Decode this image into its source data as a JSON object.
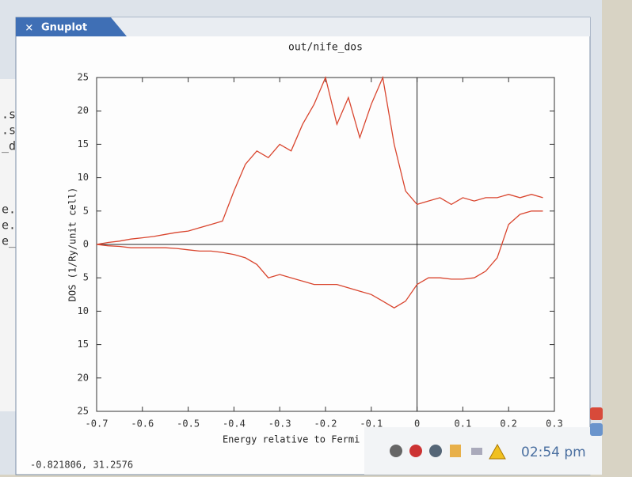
{
  "window": {
    "title": "Gnuplot"
  },
  "terminal_lines": [
    ".s",
    ".s",
    "_d",
    "e.s",
    "e.s",
    "e_d"
  ],
  "chart_data": {
    "type": "line",
    "title": "out/nife_dos",
    "x_label": "Energy relative to Fermi energy (Ry)",
    "y_label": "DOS (1/Ry/unit cell)",
    "xlim": [
      -0.7,
      0.3
    ],
    "ylim": [
      -25,
      25
    ],
    "xticks": [
      -0.7,
      -0.6,
      -0.5,
      -0.4,
      -0.3,
      -0.2,
      -0.1,
      0,
      0.1,
      0.2,
      0.3
    ],
    "yticks": [
      {
        "value": -25,
        "label": "25"
      },
      {
        "value": -20,
        "label": "20"
      },
      {
        "value": -15,
        "label": "15"
      },
      {
        "value": -10,
        "label": "10"
      },
      {
        "value": -5,
        "label": "5"
      },
      0,
      5,
      10,
      15,
      20,
      25
    ],
    "zeroaxis": true,
    "x": [
      -0.7,
      -0.675,
      -0.65,
      -0.625,
      -0.6,
      -0.575,
      -0.55,
      -0.525,
      -0.5,
      -0.475,
      -0.45,
      -0.425,
      -0.4,
      -0.375,
      -0.35,
      -0.325,
      -0.3,
      -0.275,
      -0.25,
      -0.225,
      -0.2,
      -0.175,
      -0.15,
      -0.125,
      -0.1,
      -0.075,
      -0.05,
      -0.025,
      0,
      0.025,
      0.05,
      0.075,
      0.1,
      0.125,
      0.15,
      0.175,
      0.2,
      0.225,
      0.25,
      0.275
    ],
    "series": [
      {
        "color": "#d9452e",
        "values": [
          0,
          0.3,
          0.5,
          0.8,
          1,
          1.2,
          1.5,
          1.8,
          2,
          2.5,
          3,
          3.5,
          8,
          12,
          14,
          13,
          15,
          14,
          18,
          21,
          25,
          18,
          22,
          16,
          21,
          25,
          15,
          8,
          6,
          6.5,
          7,
          6,
          7,
          6.5,
          7,
          7,
          7.5,
          7,
          7.5,
          7
        ]
      },
      {
        "color": "#d9452e",
        "values": [
          0,
          -0.2,
          -0.3,
          -0.5,
          -0.5,
          -0.5,
          -0.5,
          -0.6,
          -0.8,
          -1,
          -1,
          -1.2,
          -1.5,
          -2,
          -3,
          -5,
          -4.5,
          -5,
          -5.5,
          -6,
          -6,
          -6,
          -6.5,
          -7,
          -7.5,
          -8.5,
          -9.5,
          -8.5,
          -6,
          -5,
          -5,
          -5.2,
          -5.2,
          -5,
          -4,
          -2,
          3,
          4.5,
          5,
          5
        ]
      }
    ]
  },
  "status_bar": {
    "coordinates": "-0.821806,  31.2576"
  },
  "taskbar": {
    "clock": "02:54 pm"
  }
}
